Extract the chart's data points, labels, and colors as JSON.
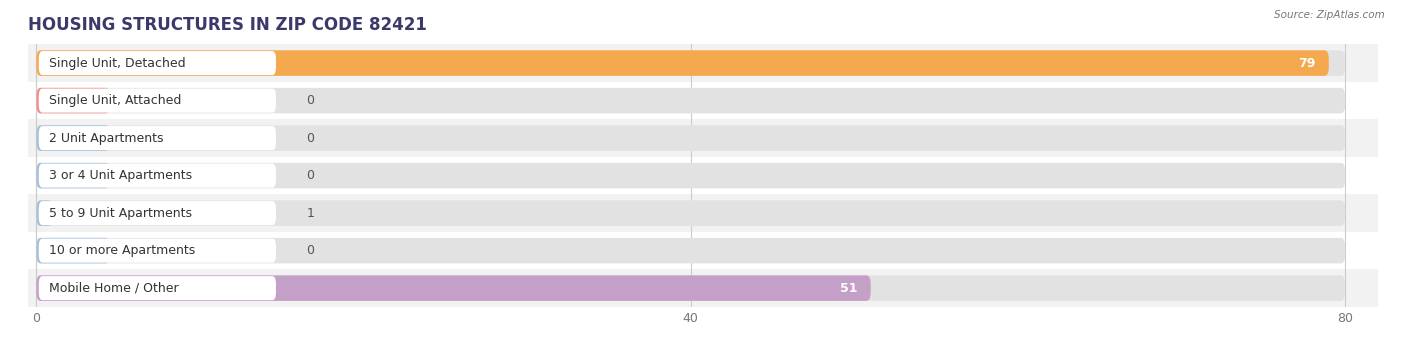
{
  "title": "HOUSING STRUCTURES IN ZIP CODE 82421",
  "source": "Source: ZipAtlas.com",
  "categories": [
    "Single Unit, Detached",
    "Single Unit, Attached",
    "2 Unit Apartments",
    "3 or 4 Unit Apartments",
    "5 to 9 Unit Apartments",
    "10 or more Apartments",
    "Mobile Home / Other"
  ],
  "values": [
    79,
    0,
    0,
    0,
    1,
    0,
    51
  ],
  "bar_colors": [
    "#f5a94e",
    "#f0908a",
    "#a8c0d8",
    "#a8c0d8",
    "#a8c0d8",
    "#a8c0d8",
    "#c4a0c8"
  ],
  "bar_bg_color": "#e2e2e2",
  "row_bg_colors": [
    "#f2f2f2",
    "#ffffff"
  ],
  "xlim": [
    0,
    80
  ],
  "xticks": [
    0,
    40,
    80
  ],
  "label_fontsize": 9,
  "value_fontsize": 9,
  "title_fontsize": 12,
  "bar_height": 0.68,
  "figsize": [
    14.06,
    3.41
  ],
  "dpi": 100
}
